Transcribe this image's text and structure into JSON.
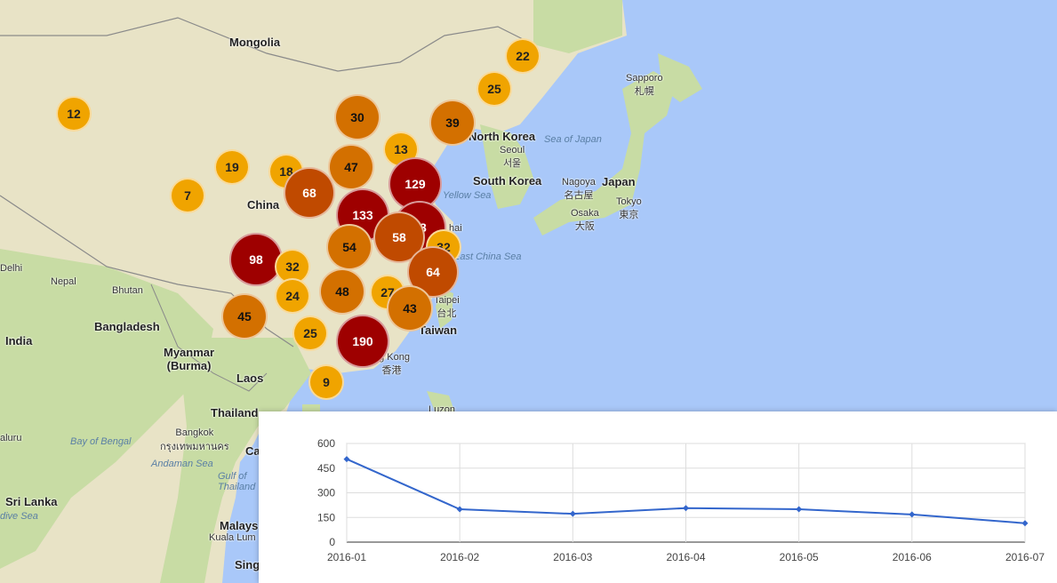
{
  "map": {
    "countries": {
      "mongolia": "Mongolia",
      "china": "China",
      "north_korea": "North Korea",
      "south_korea": "South Korea",
      "japan": "Japan",
      "taiwan": "Taiwan",
      "india": "India",
      "nepal": "Nepal",
      "bhutan": "Bhutan",
      "bangladesh": "Bangladesh",
      "myanmar": "Myanmar\n(Burma)",
      "laos": "Laos",
      "thailand": "Thailand",
      "sri_lanka": "Sri Lanka",
      "malaysia": "Malays"
    },
    "cities": {
      "seoul": "Seoul\n서울",
      "sapporo": "Sapporo\n札幌",
      "nagoya": "Nagoya\n名古屋",
      "osaka": "Osaka\n大阪",
      "tokyo": "Tokyo\n東京",
      "taipei": "Taipei\n台北",
      "hong_kong": "ng Kong\n香港",
      "bangkok": "Bangkok\nกรุงเทพมหานคร",
      "kuala_lumpur": "Kuala Lum",
      "delhi": "Delhi",
      "luzon": "Luzon",
      "sing": "Sing",
      "aluru": "aluru",
      "ca": "Ca"
    },
    "seas": {
      "sea_of_japan": "Sea of Japan",
      "yellow_sea": "Yellow Sea",
      "east_china_sea": "East China Sea",
      "bay_of_bengal": "Bay of Bengal",
      "andaman_sea": "Andaman Sea",
      "gulf_thailand": "Gulf of\nThailand",
      "dive_sea": "dive Sea",
      "hai": "hai"
    },
    "colors": {
      "water": "#a9c8f9",
      "land": "#e8e3c6",
      "land_green": "#c8dca4",
      "border": "#8a8a8a"
    }
  },
  "clusters": [
    {
      "count": "22",
      "tier": "c1"
    },
    {
      "count": "25",
      "tier": "c1"
    },
    {
      "count": "12",
      "tier": "c1"
    },
    {
      "count": "30",
      "tier": "c2"
    },
    {
      "count": "39",
      "tier": "c2"
    },
    {
      "count": "13",
      "tier": "c1"
    },
    {
      "count": "19",
      "tier": "c1"
    },
    {
      "count": "18",
      "tier": "c1"
    },
    {
      "count": "47",
      "tier": "c2"
    },
    {
      "count": "7",
      "tier": "c1"
    },
    {
      "count": "68",
      "tier": "c3"
    },
    {
      "count": "129",
      "tier": "c4"
    },
    {
      "count": "133",
      "tier": "c4"
    },
    {
      "count": "18",
      "tier": "c4"
    },
    {
      "count": "54",
      "tier": "c2"
    },
    {
      "count": "58",
      "tier": "c3"
    },
    {
      "count": "32",
      "tier": "c1"
    },
    {
      "count": "98",
      "tier": "c4"
    },
    {
      "count": "32",
      "tier": "c1"
    },
    {
      "count": "64",
      "tier": "c3"
    },
    {
      "count": "24",
      "tier": "c1"
    },
    {
      "count": "48",
      "tier": "c2"
    },
    {
      "count": "27",
      "tier": "c1"
    },
    {
      "count": "45",
      "tier": "c2"
    },
    {
      "count": "43",
      "tier": "c2"
    },
    {
      "count": "25",
      "tier": "c1"
    },
    {
      "count": "190",
      "tier": "c4"
    },
    {
      "count": "9",
      "tier": "c1"
    }
  ],
  "chart_data": {
    "type": "line",
    "categories": [
      "2016-01",
      "2016-02",
      "2016-03",
      "2016-04",
      "2016-05",
      "2016-06",
      "2016-07"
    ],
    "values": [
      505,
      200,
      172,
      207,
      200,
      168,
      115
    ],
    "ylim": [
      0,
      600
    ],
    "yticks": [
      "600",
      "450",
      "300",
      "150",
      "0"
    ],
    "line_color": "#3366cc",
    "grid": true
  }
}
